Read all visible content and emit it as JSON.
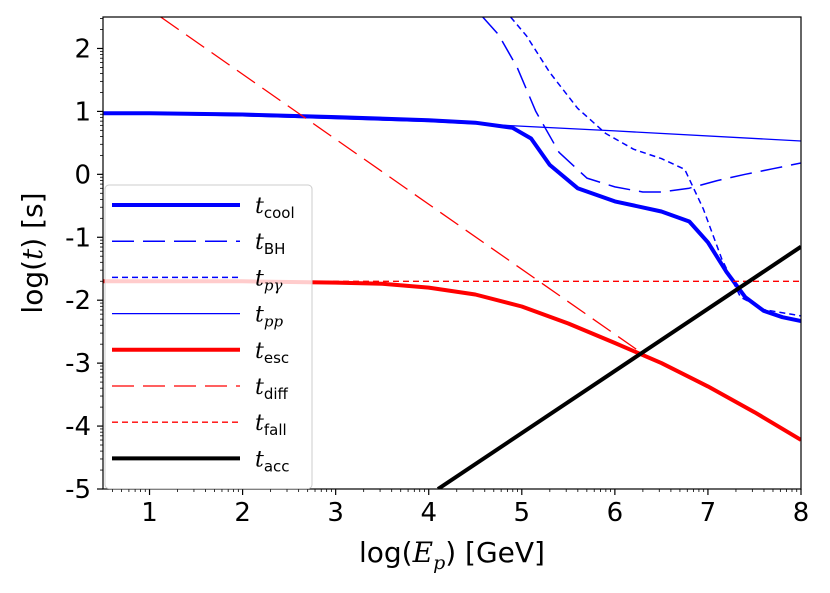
{
  "chart_data": {
    "type": "line",
    "xlabel": "log(E_p) [GeV]",
    "ylabel": "log(t) [s]",
    "xlim": [
      0.5,
      8
    ],
    "ylim": [
      -5,
      2.5
    ],
    "xticks": [
      1,
      2,
      3,
      4,
      5,
      6,
      7,
      8
    ],
    "yticks": [
      2,
      1,
      0,
      -1,
      -2,
      -3,
      -4,
      -5
    ],
    "ytick_labels": [
      "2",
      "1",
      "0",
      "-1",
      "-2",
      "-3",
      "-4",
      "-5"
    ],
    "legend_position": "left",
    "series": [
      {
        "name": "t_cool",
        "label_main": "t",
        "label_sub": "cool",
        "sub_italic": false,
        "color": "#0000ff",
        "style": "solid",
        "width": 4,
        "x": [
          0.5,
          1.0,
          2.0,
          3.0,
          4.0,
          4.5,
          4.9,
          5.1,
          5.3,
          5.6,
          6.0,
          6.5,
          6.8,
          7.0,
          7.2,
          7.4,
          7.6,
          7.8,
          8.0
        ],
        "y": [
          0.97,
          0.97,
          0.95,
          0.91,
          0.86,
          0.82,
          0.74,
          0.57,
          0.15,
          -0.22,
          -0.43,
          -0.59,
          -0.75,
          -1.08,
          -1.55,
          -1.95,
          -2.17,
          -2.27,
          -2.33
        ]
      },
      {
        "name": "t_BH",
        "label_main": "t",
        "label_sub": "BH",
        "sub_italic": false,
        "color": "#0000ff",
        "style": "longdash",
        "width": 1.5,
        "x": [
          4.58,
          4.75,
          4.95,
          5.15,
          5.4,
          5.7,
          6.0,
          6.3,
          6.5,
          6.8,
          7.1,
          7.4,
          7.7,
          8.0
        ],
        "y": [
          2.5,
          2.22,
          1.7,
          1.0,
          0.35,
          -0.06,
          -0.2,
          -0.28,
          -0.28,
          -0.22,
          -0.1,
          0.0,
          0.09,
          0.18
        ]
      },
      {
        "name": "t_pgamma",
        "label_main": "t",
        "label_sub": "pγ",
        "sub_italic": true,
        "color": "#0000ff",
        "style": "shortdash",
        "width": 1.5,
        "x": [
          4.88,
          5.05,
          5.3,
          5.6,
          5.9,
          6.2,
          6.5,
          6.75,
          6.95,
          7.15,
          7.35,
          7.6,
          8.0
        ],
        "y": [
          2.5,
          2.2,
          1.62,
          1.05,
          0.65,
          0.4,
          0.25,
          0.08,
          -0.55,
          -1.35,
          -1.95,
          -2.15,
          -2.25
        ]
      },
      {
        "name": "t_pp",
        "label_main": "t",
        "label_sub": "pp",
        "sub_italic": true,
        "color": "#0000ff",
        "style": "solid",
        "width": 1.3,
        "x": [
          0.5,
          2.0,
          4.0,
          6.0,
          8.0
        ],
        "y": [
          0.97,
          0.93,
          0.84,
          0.69,
          0.53
        ]
      },
      {
        "name": "t_esc",
        "label_main": "t",
        "label_sub": "esc",
        "sub_italic": false,
        "color": "#ff0000",
        "style": "solid",
        "width": 4,
        "x": [
          0.5,
          2.0,
          3.0,
          3.5,
          4.0,
          4.5,
          5.0,
          5.5,
          6.0,
          6.5,
          7.0,
          7.5,
          8.0
        ],
        "y": [
          -1.7,
          -1.7,
          -1.72,
          -1.74,
          -1.8,
          -1.91,
          -2.1,
          -2.37,
          -2.68,
          -3.0,
          -3.37,
          -3.78,
          -4.22
        ]
      },
      {
        "name": "t_diff",
        "label_main": "t",
        "label_sub": "diff",
        "sub_italic": false,
        "color": "#ff0000",
        "style": "longdash",
        "width": 1.3,
        "x": [
          1.12,
          6.25
        ],
        "y": [
          2.5,
          -2.8
        ]
      },
      {
        "name": "t_fall",
        "label_main": "t",
        "label_sub": "fall",
        "sub_italic": false,
        "color": "#ff0000",
        "style": "shortdash",
        "width": 1.3,
        "x": [
          0.5,
          8.0
        ],
        "y": [
          -1.7,
          -1.7
        ]
      },
      {
        "name": "t_acc",
        "label_main": "t",
        "label_sub": "acc",
        "sub_italic": false,
        "color": "#000000",
        "style": "solid",
        "width": 4,
        "x": [
          4.1,
          8.0
        ],
        "y": [
          -5.0,
          -1.15
        ]
      }
    ]
  }
}
